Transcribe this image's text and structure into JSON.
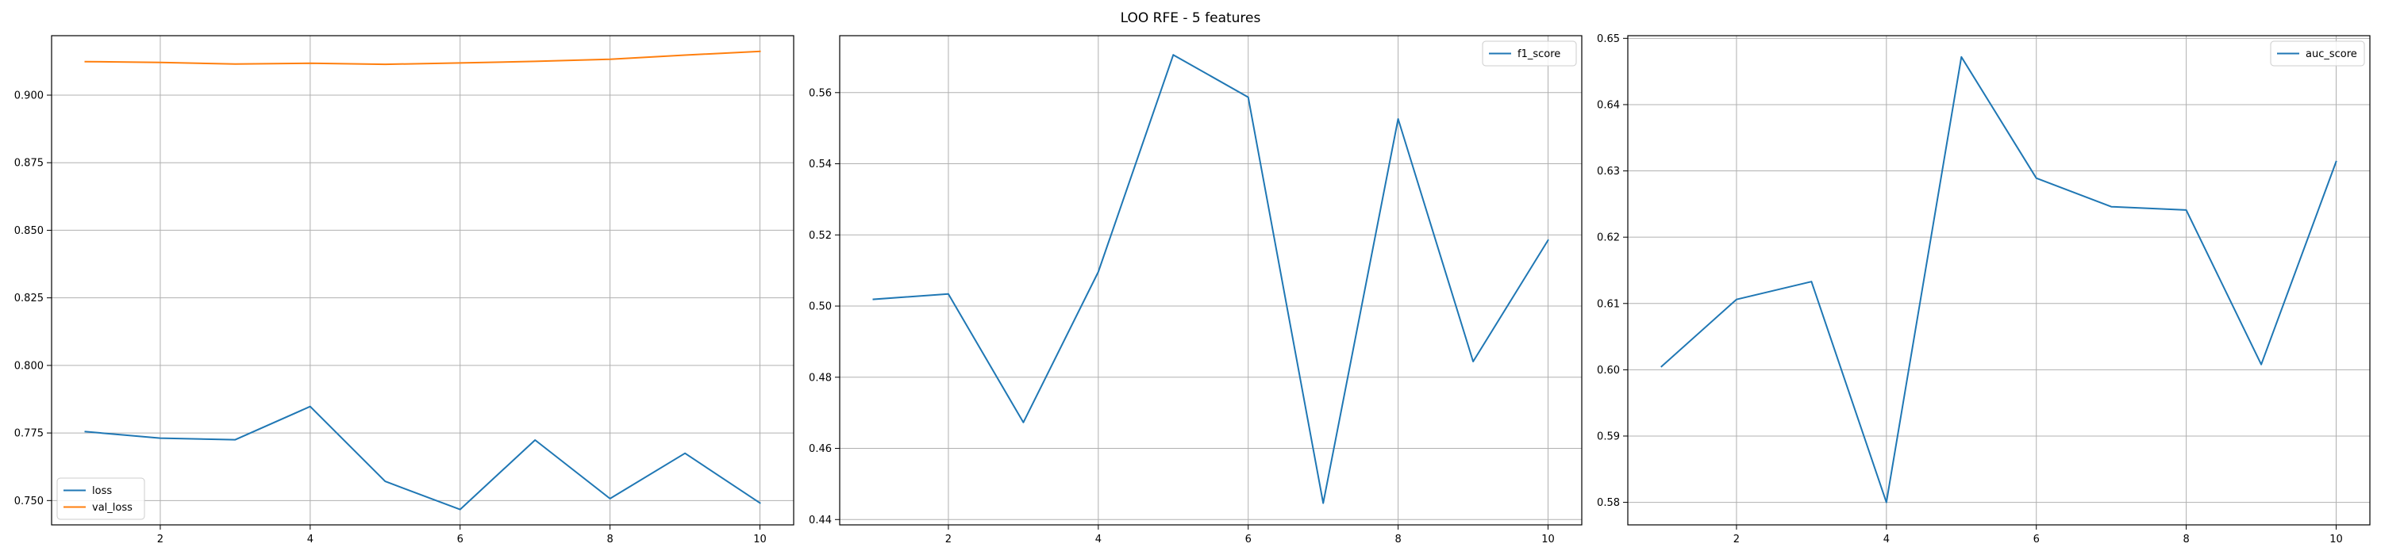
{
  "figure": {
    "title": "LOO RFE - 5 features"
  },
  "chart_data": [
    {
      "type": "line",
      "title": "",
      "xlabel": "",
      "ylabel": "",
      "x": [
        1,
        2,
        3,
        4,
        5,
        6,
        7,
        8,
        9,
        10
      ],
      "xlim": [
        0.55,
        10.45
      ],
      "ylim": [
        0.741,
        0.922
      ],
      "xticks": [
        2,
        4,
        6,
        8,
        10
      ],
      "yticks": [
        0.75,
        0.775,
        0.8,
        0.825,
        0.85,
        0.875,
        0.9
      ],
      "ytick_decimals": 3,
      "grid": true,
      "legend_position": "lower-left",
      "series": [
        {
          "name": "loss",
          "color": "#1f77b4",
          "values": [
            0.7755,
            0.7731,
            0.7725,
            0.7848,
            0.7571,
            0.7467,
            0.7724,
            0.7507,
            0.7675,
            0.7491
          ]
        },
        {
          "name": "val_loss",
          "color": "#ff7f0e",
          "values": [
            0.9124,
            0.9121,
            0.9115,
            0.9118,
            0.9114,
            0.9119,
            0.9125,
            0.9133,
            0.9148,
            0.9162
          ]
        }
      ]
    },
    {
      "type": "line",
      "title": "",
      "xlabel": "",
      "ylabel": "",
      "x": [
        1,
        2,
        3,
        4,
        5,
        6,
        7,
        8,
        9,
        10
      ],
      "xlim": [
        0.55,
        10.45
      ],
      "ylim": [
        0.4385,
        0.576
      ],
      "xticks": [
        2,
        4,
        6,
        8,
        10
      ],
      "yticks": [
        0.44,
        0.46,
        0.48,
        0.5,
        0.52,
        0.54,
        0.56
      ],
      "ytick_decimals": 2,
      "grid": true,
      "legend_position": "upper-right",
      "series": [
        {
          "name": "f1_score",
          "color": "#1f77b4",
          "values": [
            0.5019,
            0.5034,
            0.4673,
            0.5096,
            0.5706,
            0.5587,
            0.4446,
            0.5526,
            0.4844,
            0.5185
          ]
        }
      ]
    },
    {
      "type": "line",
      "title": "",
      "xlabel": "",
      "ylabel": "",
      "x": [
        1,
        2,
        3,
        4,
        5,
        6,
        7,
        8,
        9,
        10
      ],
      "xlim": [
        0.55,
        10.45
      ],
      "ylim": [
        0.5766,
        0.6504
      ],
      "xticks": [
        2,
        4,
        6,
        8,
        10
      ],
      "yticks": [
        0.58,
        0.59,
        0.6,
        0.61,
        0.62,
        0.63,
        0.64,
        0.65
      ],
      "ytick_decimals": 2,
      "grid": true,
      "legend_position": "upper-right",
      "series": [
        {
          "name": "auc_score",
          "color": "#1f77b4",
          "values": [
            0.6005,
            0.6106,
            0.6133,
            0.58,
            0.6472,
            0.6289,
            0.6246,
            0.6241,
            0.6008,
            0.6314
          ]
        }
      ]
    }
  ]
}
